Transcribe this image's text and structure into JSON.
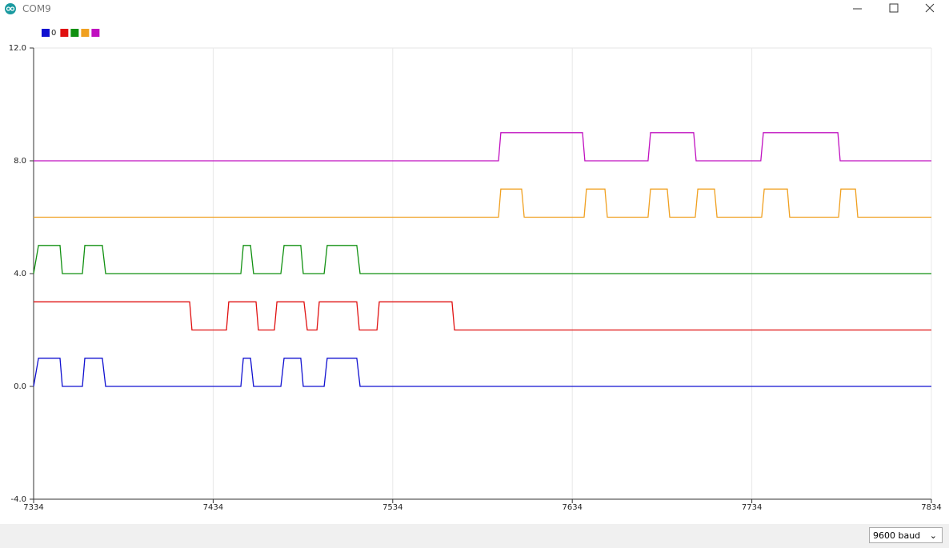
{
  "window": {
    "title": "COM9"
  },
  "chart_data": {
    "type": "line",
    "series": [
      {
        "name": "0",
        "color": "#1010d0",
        "x": [
          7334,
          7336.7,
          7348.7,
          7350,
          7361.2,
          7362.5,
          7372.3,
          7374.1,
          7449.4,
          7450.8,
          7454.8,
          7456.5,
          7471.7,
          7473.5,
          7482.8,
          7484.2,
          7495.8,
          7497.5,
          7514,
          7515.8,
          7834
        ],
        "values": [
          0,
          1,
          1,
          0,
          0,
          1,
          1,
          0,
          0,
          1,
          1,
          0,
          0,
          1,
          1,
          0,
          0,
          1,
          1,
          0,
          0
        ]
      },
      {
        "color": "#e01010",
        "x": [
          7334,
          7420.9,
          7422.2,
          7441.4,
          7442.7,
          7457.9,
          7459.2,
          7468.1,
          7469.5,
          7484.6,
          7486.4,
          7491.8,
          7493.1,
          7514,
          7515.4,
          7525.2,
          7526.5,
          7567,
          7568.4,
          7834
        ],
        "values": [
          3,
          3,
          2,
          2,
          3,
          3,
          2,
          2,
          3,
          3,
          2,
          2,
          3,
          3,
          2,
          2,
          3,
          3,
          2,
          2
        ]
      },
      {
        "color": "#109010",
        "x": [
          7334,
          7336.7,
          7348.7,
          7350,
          7361.2,
          7362.5,
          7372.3,
          7374.1,
          7449.4,
          7450.8,
          7454.8,
          7456.5,
          7471.7,
          7473.5,
          7482.8,
          7484.2,
          7495.8,
          7497.5,
          7514,
          7515.8,
          7834
        ],
        "values": [
          4,
          5,
          5,
          4,
          4,
          5,
          5,
          4,
          4,
          5,
          5,
          4,
          4,
          5,
          5,
          4,
          4,
          5,
          5,
          4,
          4
        ]
      },
      {
        "color": "#f0a020",
        "x": [
          7334,
          7592.9,
          7594.2,
          7605.8,
          7607.2,
          7640.6,
          7641.9,
          7652.2,
          7653.5,
          7676.2,
          7677.6,
          7686.9,
          7688.3,
          7702.5,
          7703.9,
          7713.2,
          7714.6,
          7739.5,
          7740.9,
          7753.8,
          7755.1,
          7782.3,
          7783.6,
          7791.7,
          7793,
          7834
        ],
        "values": [
          6,
          6,
          7,
          7,
          6,
          6,
          7,
          7,
          6,
          6,
          7,
          7,
          6,
          6,
          7,
          7,
          6,
          6,
          7,
          7,
          6,
          6,
          7,
          7,
          6,
          6
        ]
      },
      {
        "color": "#c010c0",
        "x": [
          7334,
          7592.9,
          7594.2,
          7639.7,
          7641,
          7676.2,
          7677.6,
          7701.6,
          7703,
          7739,
          7740.4,
          7781.9,
          7783.2,
          7834
        ],
        "values": [
          8,
          8,
          9,
          9,
          8,
          8,
          9,
          9,
          8,
          8,
          9,
          9,
          8,
          8
        ]
      }
    ],
    "xlim": [
      7334,
      7834
    ],
    "xticks": [
      7334,
      7434,
      7534,
      7634,
      7734,
      7834
    ],
    "ylim": [
      -4,
      12
    ],
    "yticks": [
      {
        "value": -4,
        "label": "-4.0"
      },
      {
        "value": 0,
        "label": "0.0"
      },
      {
        "value": 4,
        "label": "4.0"
      },
      {
        "value": 8,
        "label": "8.0"
      },
      {
        "value": 12,
        "label": "12.0"
      }
    ],
    "grid": "x"
  },
  "footer": {
    "baud": "9600 baud"
  }
}
